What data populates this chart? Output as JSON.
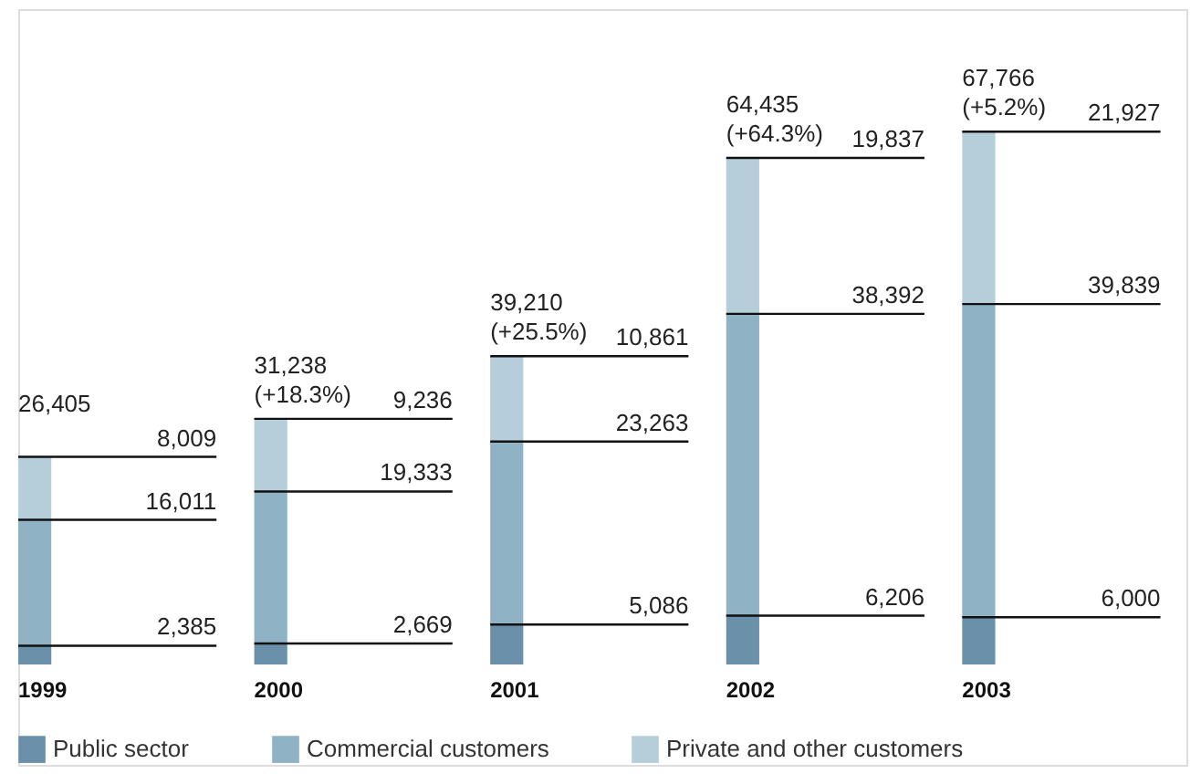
{
  "chart_data": {
    "type": "bar",
    "stacked": true,
    "legend": "bottom left",
    "categories": [
      "1999",
      "2000",
      "2001",
      "2002",
      "2003"
    ],
    "series": [
      {
        "name": "Public sector",
        "color": "#6b91aa",
        "values": [
          2385,
          2669,
          5086,
          6206,
          6000
        ],
        "value_labels": [
          "2,385",
          "2,669",
          "5,086",
          "6,206",
          "6,000"
        ]
      },
      {
        "name": "Commercial customers",
        "color": "#8fb2c5",
        "values": [
          16011,
          19333,
          23263,
          38392,
          39839
        ],
        "value_labels": [
          "16,011",
          "19,333",
          "23,263",
          "38,392",
          "39,839"
        ]
      },
      {
        "name": "Private and other customers",
        "color": "#b5ced9",
        "values": [
          8009,
          9236,
          10861,
          19837,
          21927
        ],
        "value_labels": [
          "8,009",
          "9,236",
          "10,861",
          "19,837",
          "21,927"
        ]
      }
    ],
    "totals": [
      "26,405",
      "31,238\n(+18.3%)",
      "39,210\n(+25.5%)",
      "64,435\n(+64.3%)",
      "67,766\n(+5.2%)"
    ]
  }
}
